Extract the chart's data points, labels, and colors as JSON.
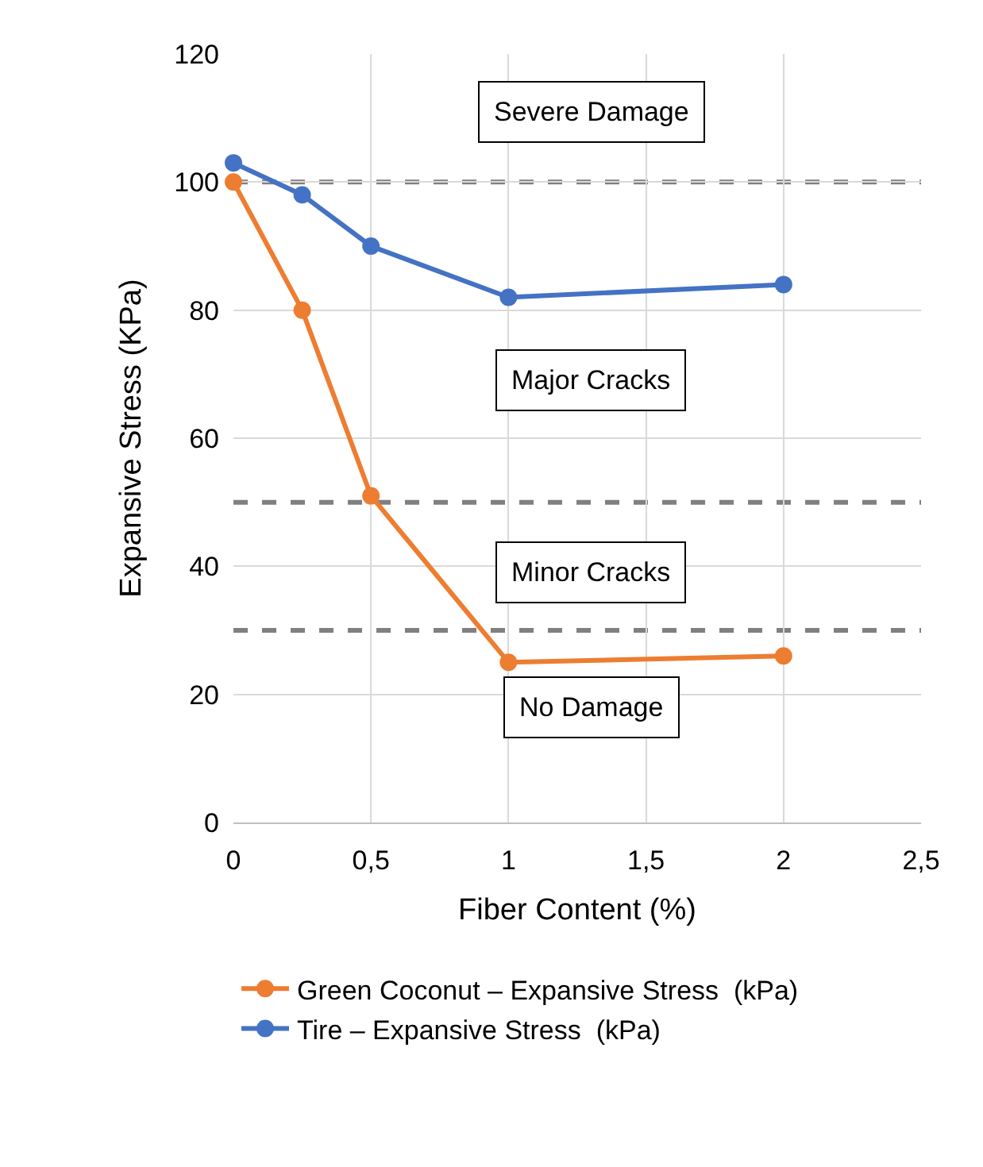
{
  "chart_data": {
    "type": "line",
    "xlabel": "Fiber Content (%)",
    "ylabel": "Expansive Stress (KPa)",
    "x": [
      0,
      0.25,
      0.5,
      1,
      2
    ],
    "series": [
      {
        "name": "Green Coconut – Expansive Stress  (kPa)",
        "color": "#ed7d31",
        "values": [
          100,
          80,
          51,
          25,
          26
        ]
      },
      {
        "name": "Tire – Expansive Stress  (kPa)",
        "color": "#4472c4",
        "values": [
          103,
          98,
          90,
          82,
          84
        ]
      }
    ],
    "xlim": [
      0,
      2.5
    ],
    "xticks": [
      0,
      {
        "value": 0.5,
        "label": "0,5"
      },
      1,
      {
        "value": 1.5,
        "label": "1,5"
      },
      2,
      {
        "value": 2.5,
        "label": "2,5"
      }
    ],
    "ylim": [
      0,
      120
    ],
    "yticks": [
      0,
      20,
      40,
      60,
      80,
      100,
      120
    ],
    "ref_lines": [
      {
        "axis": "y",
        "value": 100,
        "color": "#808080",
        "line_style": "dashed"
      },
      {
        "axis": "y",
        "value": 50,
        "color": "#808080",
        "line_style": "dashed"
      },
      {
        "axis": "y",
        "value": 30,
        "color": "#808080",
        "line_style": "dashed"
      }
    ],
    "annotations": [
      "Severe Damage",
      "Major Cracks",
      "Minor Cracks",
      "No Damage"
    ],
    "grid": true,
    "legend": "bottom",
    "marker": "circle",
    "line_style": "solid"
  }
}
